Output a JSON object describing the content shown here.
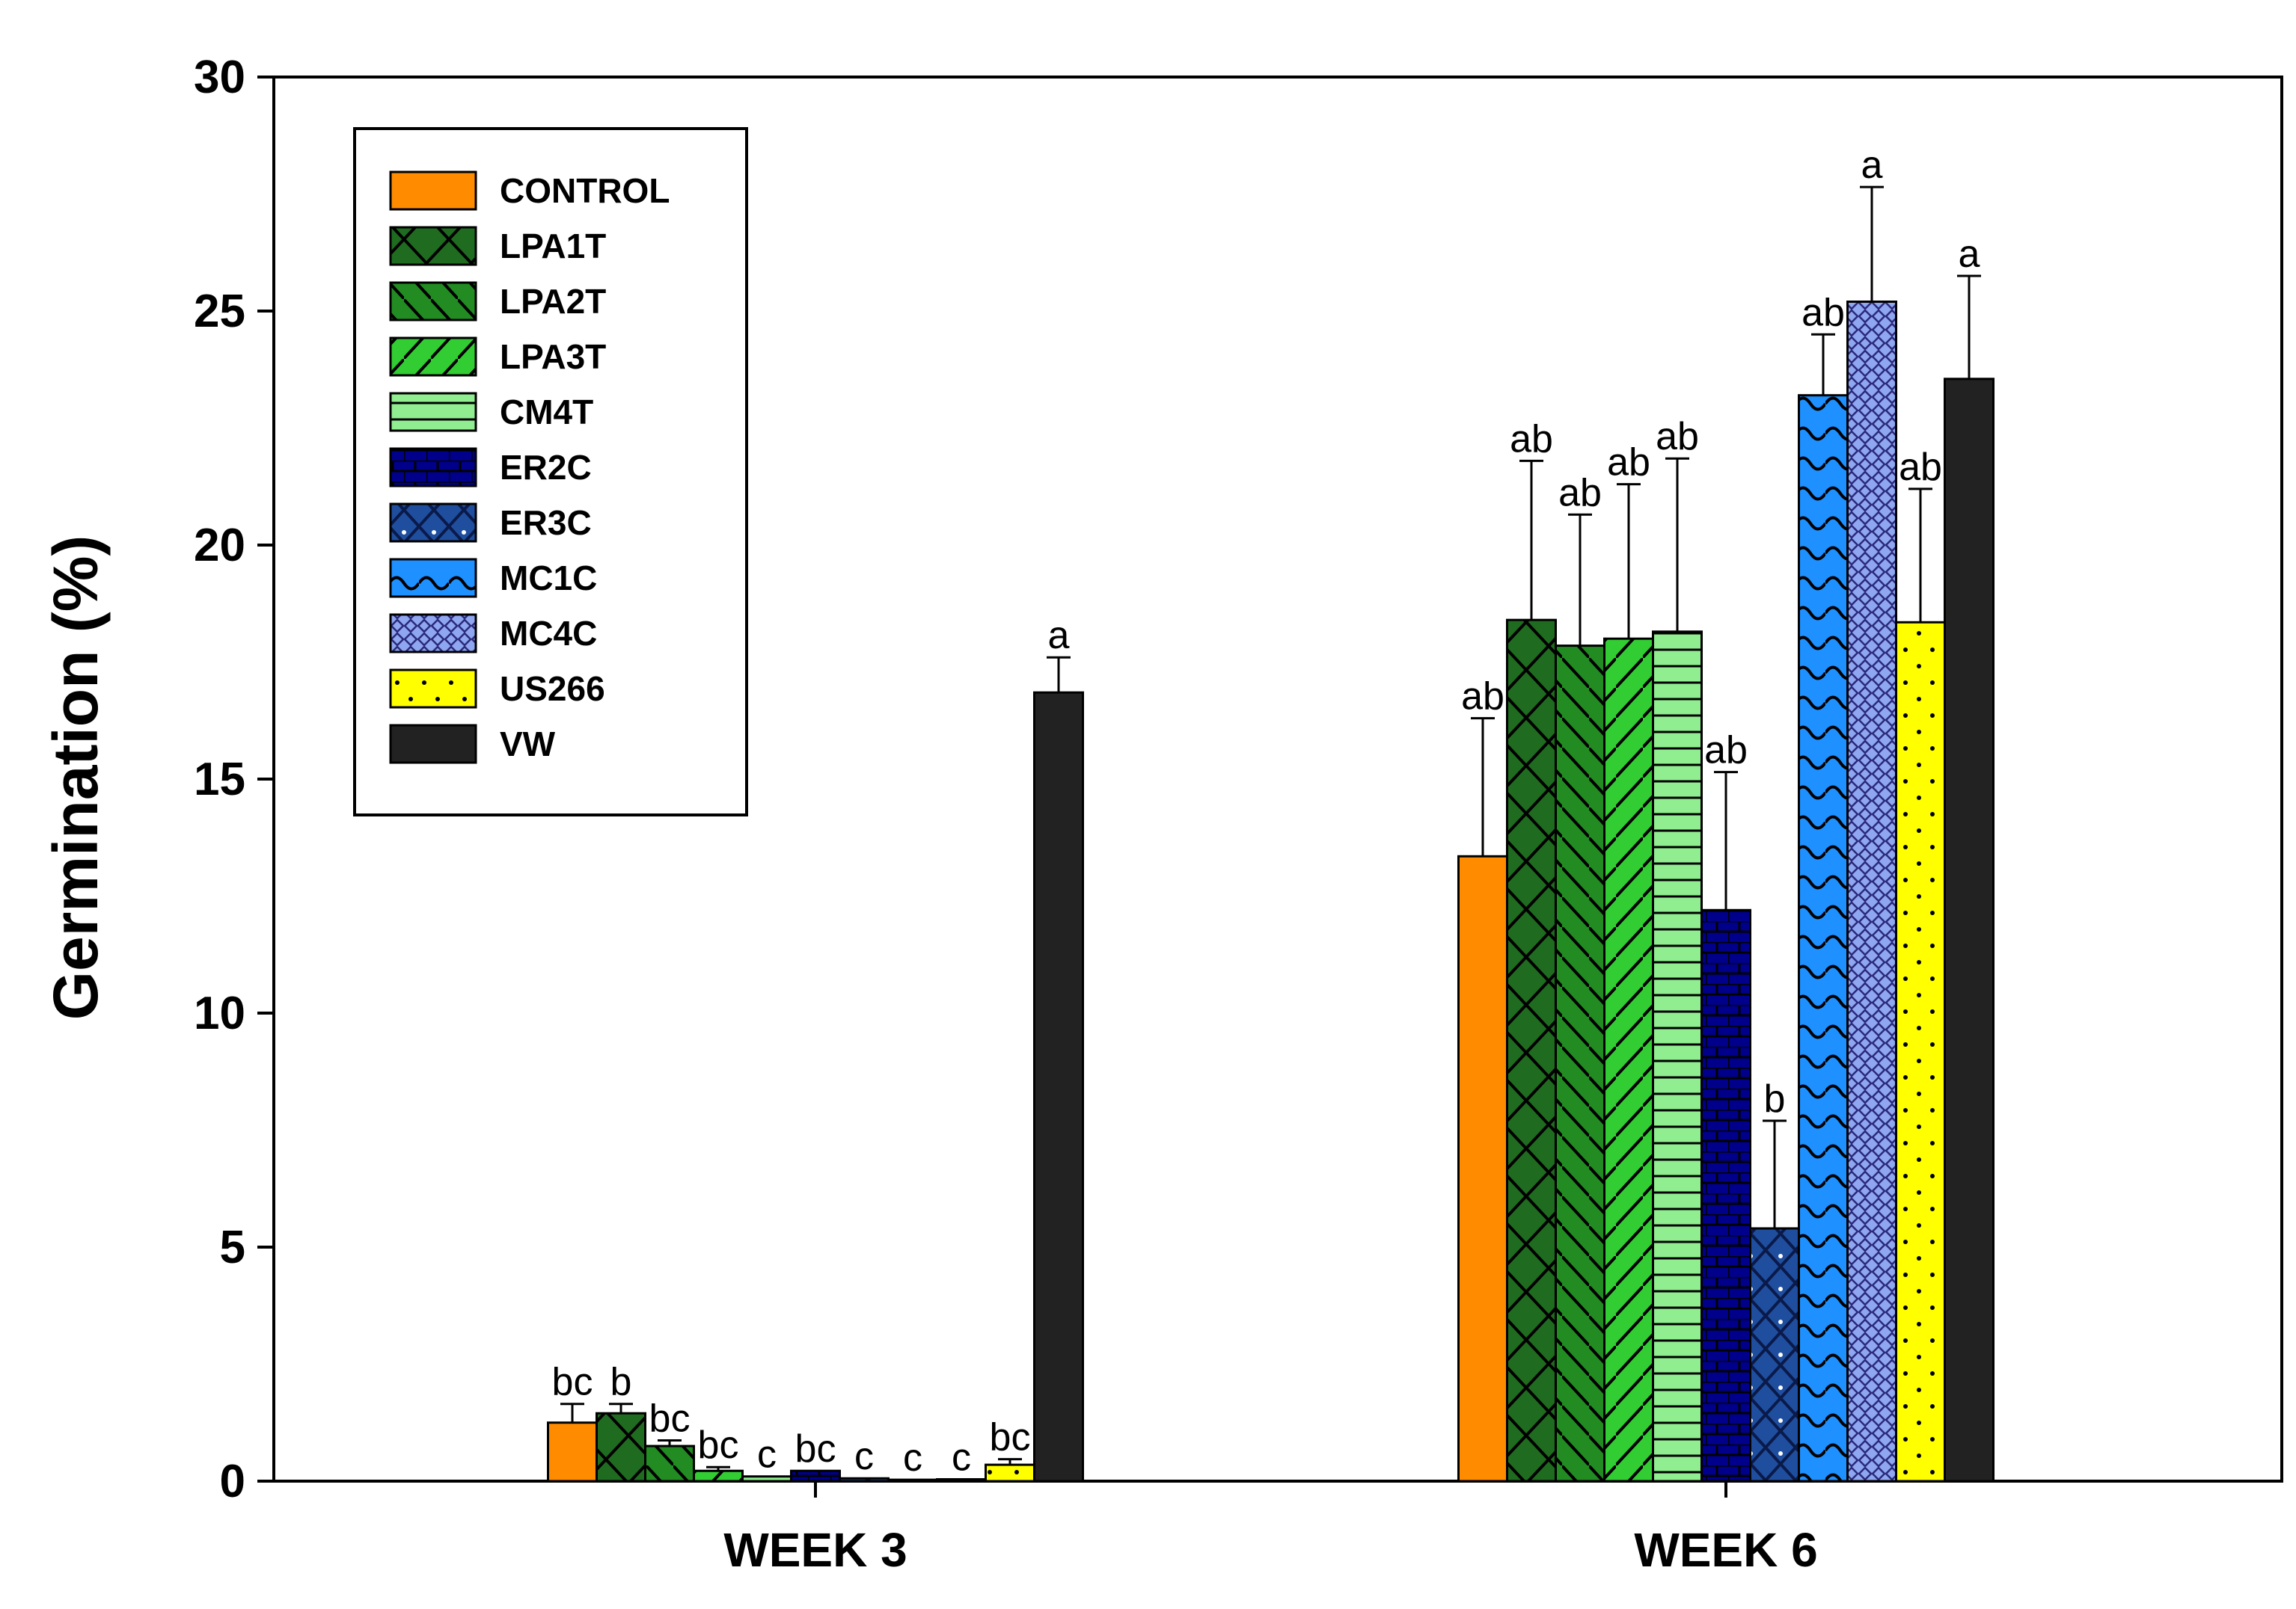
{
  "chart_data": {
    "type": "bar",
    "title": "",
    "xlabel": "",
    "ylabel": "Germination (%)",
    "ylim": [
      0,
      30
    ],
    "yticks": [
      0,
      5,
      10,
      15,
      20,
      25,
      30
    ],
    "categories": [
      "WEEK 3",
      "WEEK 6"
    ],
    "grid": false,
    "legend_position": "top-left",
    "series": [
      {
        "name": "CONTROL",
        "color": "#FF8C00",
        "pattern": "solid",
        "values": [
          1.25,
          13.35
        ],
        "errors": [
          0.4,
          2.95
        ],
        "letters": [
          "bc",
          "ab"
        ]
      },
      {
        "name": "LPA1T",
        "color": "#1F6B1F",
        "pattern": "crosshatch",
        "values": [
          1.45,
          18.4
        ],
        "errors": [
          0.2,
          3.4
        ],
        "letters": [
          "b",
          "ab"
        ]
      },
      {
        "name": "LPA2T",
        "color": "#228B22",
        "pattern": "backslash",
        "values": [
          0.75,
          17.85
        ],
        "errors": [
          0.12,
          2.8
        ],
        "letters": [
          "bc",
          "ab"
        ]
      },
      {
        "name": "LPA3T",
        "color": "#32CD32",
        "pattern": "slash",
        "values": [
          0.22,
          18.0
        ],
        "errors": [
          0.08,
          3.3
        ],
        "letters": [
          "bc",
          "ab"
        ]
      },
      {
        "name": "CM4T",
        "color": "#90EE90",
        "pattern": "hlines",
        "values": [
          0.1,
          18.15
        ],
        "errors": [
          0.0,
          3.7
        ],
        "letters": [
          "c",
          "ab"
        ]
      },
      {
        "name": "ER2C",
        "color": "#00008B",
        "pattern": "bricks",
        "values": [
          0.22,
          12.2
        ],
        "errors": [
          0.0,
          2.95
        ],
        "letters": [
          "bc",
          "ab"
        ]
      },
      {
        "name": "ER3C",
        "color": "#1F4E9E",
        "pattern": "crossdots",
        "values": [
          0.06,
          5.4
        ],
        "errors": [
          0.0,
          2.3
        ],
        "letters": [
          "c",
          "b"
        ]
      },
      {
        "name": "MC1C",
        "color": "#1E90FF",
        "pattern": "waves",
        "values": [
          0.03,
          23.2
        ],
        "errors": [
          0.0,
          1.3
        ],
        "letters": [
          "c",
          "ab"
        ]
      },
      {
        "name": "MC4C",
        "color": "#8FA6F0",
        "pattern": "diamonds",
        "values": [
          0.04,
          25.2
        ],
        "errors": [
          0.0,
          2.45
        ],
        "letters": [
          "c",
          "a"
        ]
      },
      {
        "name": "US266",
        "color": "#FFFF00",
        "pattern": "dots",
        "values": [
          0.35,
          18.35
        ],
        "errors": [
          0.12,
          2.85
        ],
        "letters": [
          "bc",
          "ab"
        ]
      },
      {
        "name": "VW",
        "color": "#222222",
        "pattern": "solid",
        "values": [
          16.85,
          23.55
        ],
        "errors": [
          0.75,
          2.2
        ],
        "letters": [
          "a",
          "a"
        ]
      }
    ]
  }
}
